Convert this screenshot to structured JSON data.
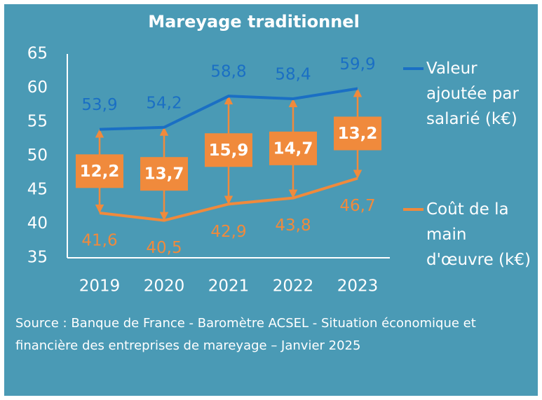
{
  "chart_data": {
    "type": "line",
    "title": "Mareyage traditionnel",
    "categories": [
      "2019",
      "2020",
      "2021",
      "2022",
      "2023"
    ],
    "series": [
      {
        "name": "Valeur ajoutée par salarié (k€)",
        "color": "#1a6fc4",
        "values": [
          53.9,
          54.2,
          58.8,
          58.4,
          59.9
        ],
        "value_labels": [
          "53,9",
          "54,2",
          "58,8",
          "58,4",
          "59,9"
        ]
      },
      {
        "name": "Coût de la main d'œuvre (k€)",
        "color": "#f08a3c",
        "values": [
          41.6,
          40.5,
          42.9,
          43.8,
          46.7
        ],
        "value_labels": [
          "41,6",
          "40,5",
          "42,9",
          "43,8",
          "46,7"
        ]
      }
    ],
    "differences": {
      "color": "#f08a3c",
      "values": [
        12.2,
        13.7,
        15.9,
        14.7,
        13.2
      ],
      "value_labels": [
        "12,2",
        "13,7",
        "15,9",
        "14,7",
        "13,2"
      ]
    },
    "ylim": [
      35,
      65
    ],
    "yticks": [
      35,
      40,
      45,
      50,
      55,
      60,
      65
    ],
    "source": "Source : Banque de France - Baromètre ACSEL - Situation économique et financière des entreprises de mareyage – Janvier 2025"
  }
}
